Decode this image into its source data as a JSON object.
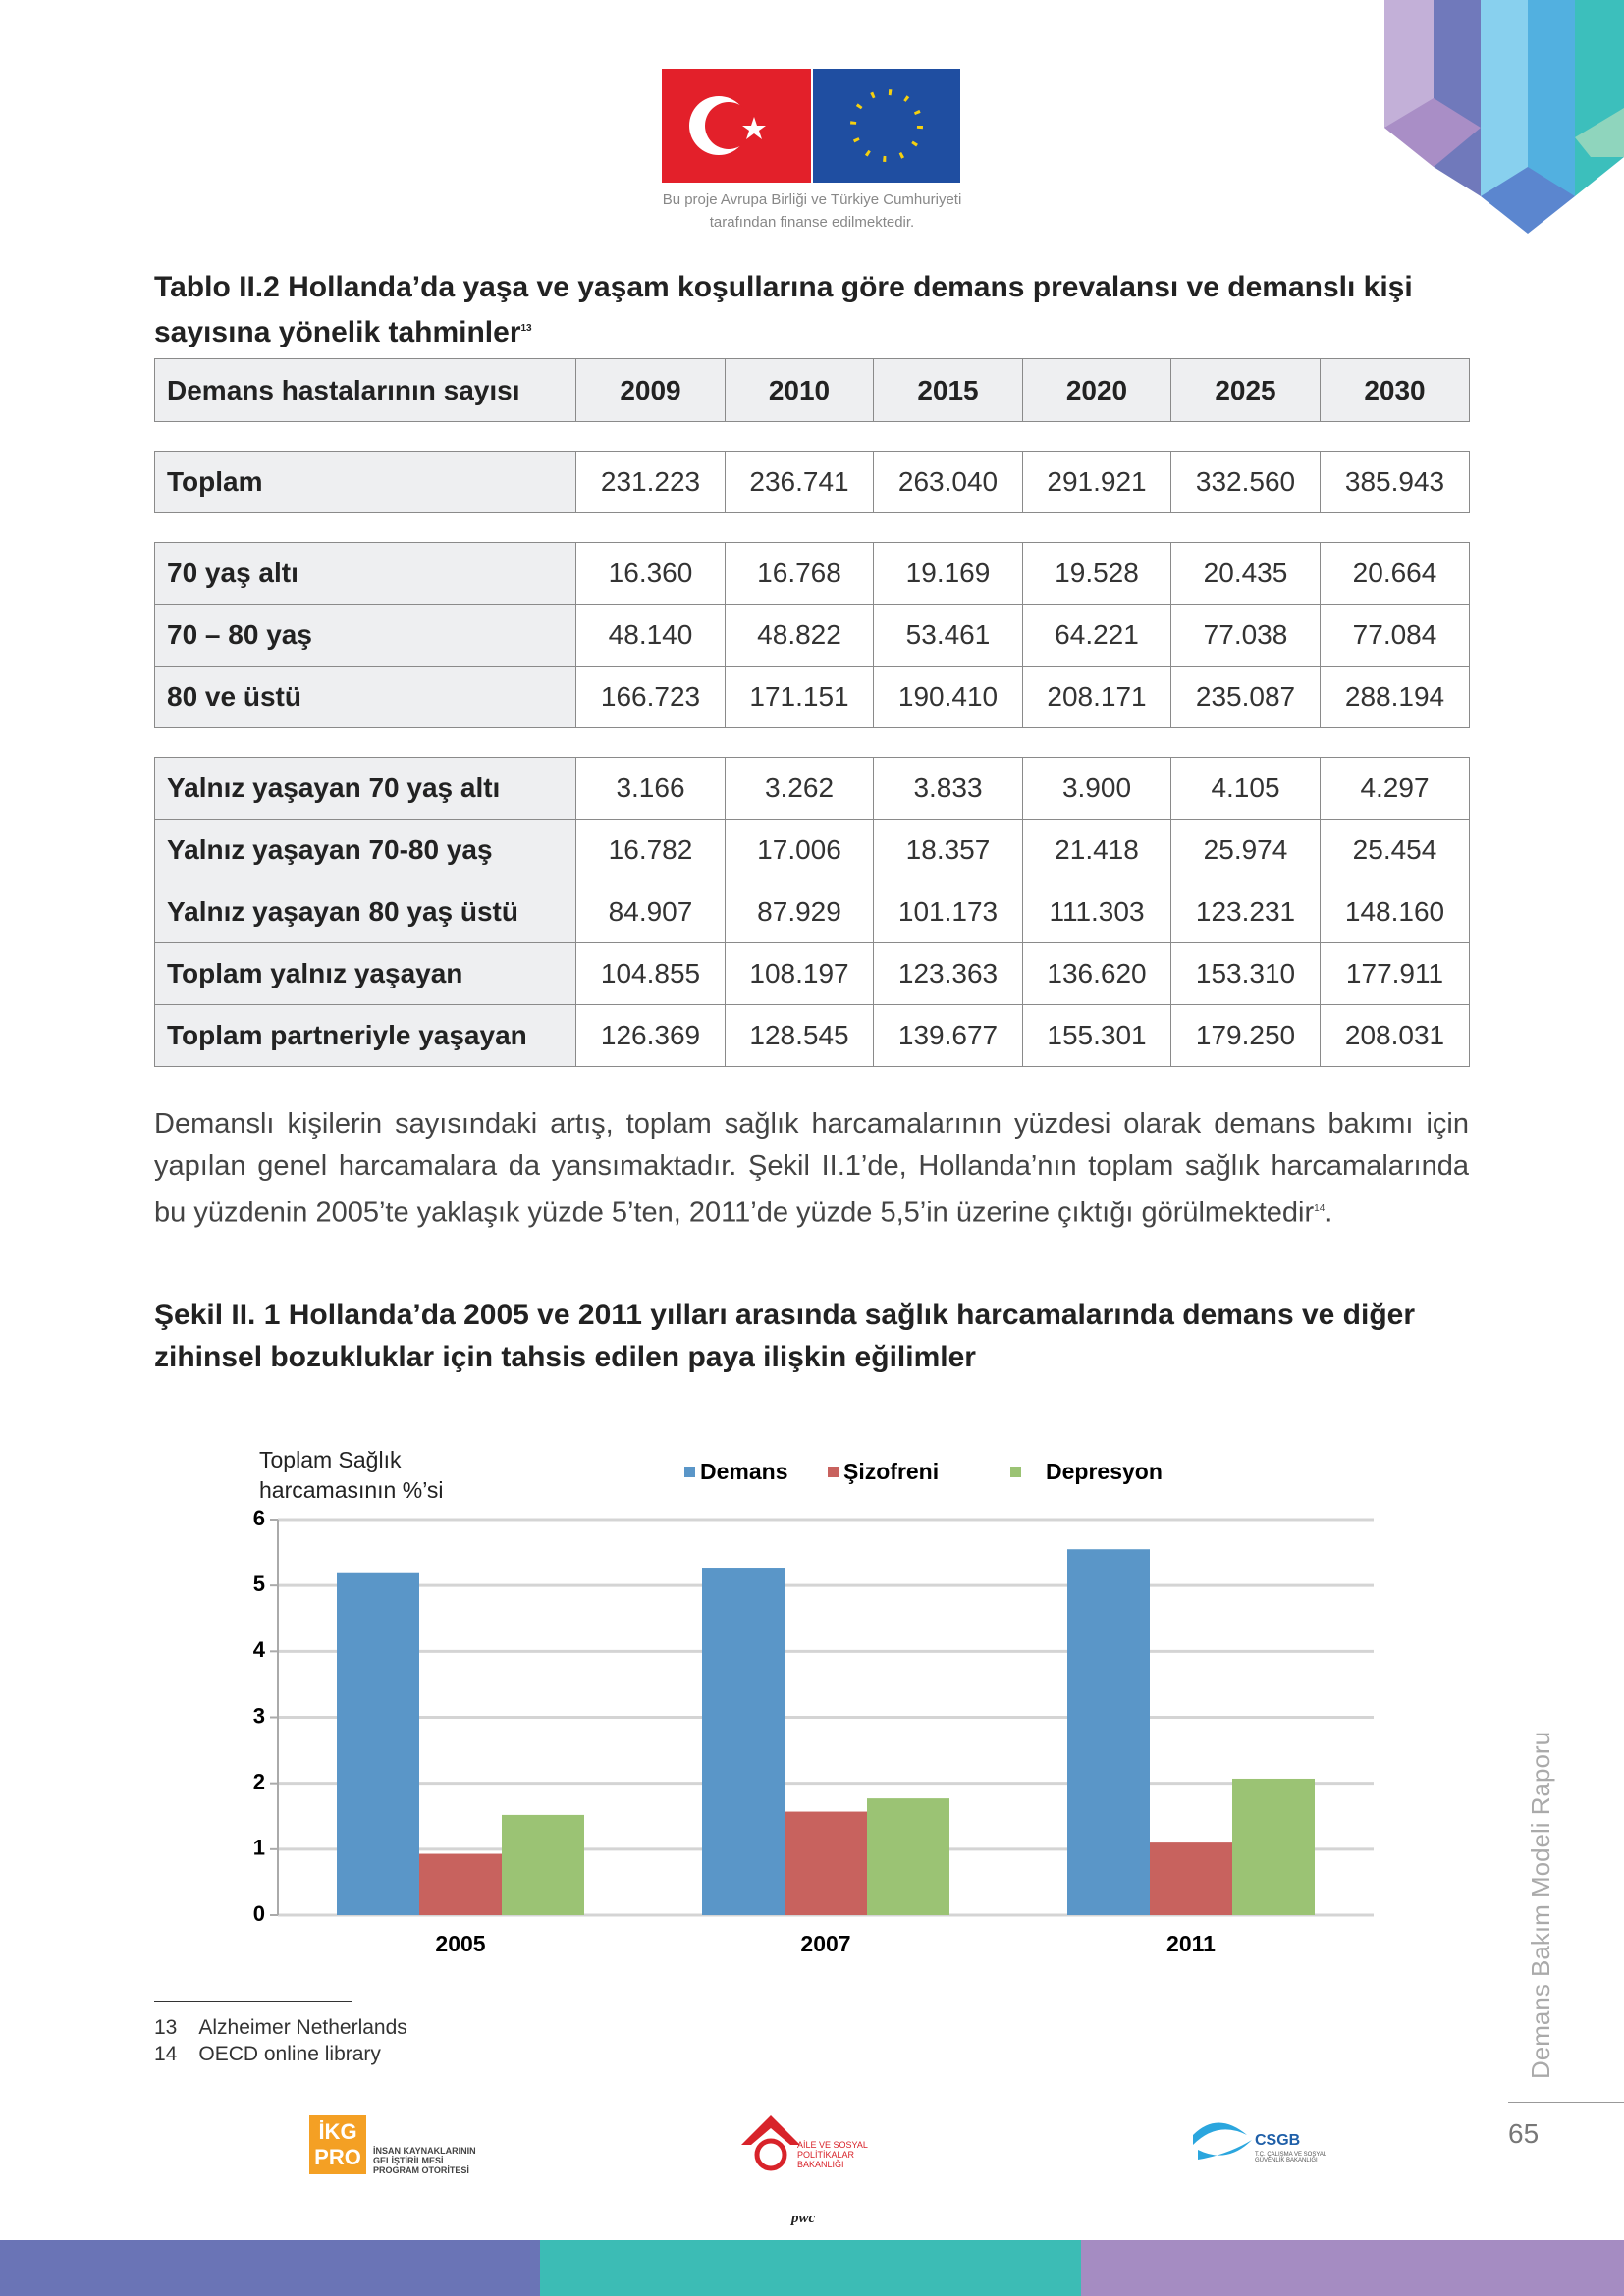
{
  "header": {
    "caption_line1": "Bu proje Avrupa Birliği ve Türkiye Cumhuriyeti",
    "caption_line2": "tarafından finanse edilmektedir."
  },
  "table": {
    "title": "Tablo II.2 Hollanda’da yaşa ve yaşam koşullarına göre demans prevalansı ve demanslı kişi sayısına yönelik tahminler",
    "title_note": "13",
    "columns": [
      "Demans hastalarının sayısı",
      "2009",
      "2010",
      "2015",
      "2020",
      "2025",
      "2030"
    ],
    "groups": [
      [
        [
          "Toplam",
          "231.223",
          "236.741",
          "263.040",
          "291.921",
          "332.560",
          "385.943"
        ]
      ],
      [
        [
          "70 yaş altı",
          "16.360",
          "16.768",
          "19.169",
          "19.528",
          "20.435",
          "20.664"
        ],
        [
          "70 – 80 yaş",
          "48.140",
          "48.822",
          "53.461",
          "64.221",
          "77.038",
          "77.084"
        ],
        [
          "80 ve üstü",
          "166.723",
          "171.151",
          "190.410",
          "208.171",
          "235.087",
          "288.194"
        ]
      ],
      [
        [
          "Yalnız yaşayan 70 yaş altı",
          "3.166",
          "3.262",
          "3.833",
          "3.900",
          "4.105",
          "4.297"
        ],
        [
          "Yalnız yaşayan 70-80 yaş",
          "16.782",
          "17.006",
          "18.357",
          "21.418",
          "25.974",
          "25.454"
        ],
        [
          "Yalnız yaşayan 80 yaş üstü",
          "84.907",
          "87.929",
          "101.173",
          "111.303",
          "123.231",
          "148.160"
        ],
        [
          "Toplam yalnız yaşayan",
          "104.855",
          "108.197",
          "123.363",
          "136.620",
          "153.310",
          "177.911"
        ],
        [
          "Toplam partneriyle yaşayan",
          "126.369",
          "128.545",
          "139.677",
          "155.301",
          "179.250",
          "208.031"
        ]
      ]
    ]
  },
  "paragraph": {
    "text": "Demanslı kişilerin sayısındaki artış, toplam sağlık harcamalarının yüzdesi olarak demans bakımı için yapılan genel harcamalara da yansımaktadır. Şekil II.1’de, Hollanda’nın toplam sağlık harcamalarında bu yüzdenin 2005’te yaklaşık yüzde 5’ten, 2011’de yüzde 5,5’in üzerine çıktığı görülmektedir",
    "note": "14"
  },
  "chart_data": {
    "type": "bar",
    "title": "Şekil II. 1 Hollanda’da 2005 ve 2011 yılları arasında sağlık harcamalarında demans ve diğer zihinsel bozukluklar için tahsis edilen paya ilişkin eğilimler",
    "ylabel": "Toplam Sağlık harcamasının %’si",
    "categories": [
      "2005",
      "2007",
      "2011"
    ],
    "series": [
      {
        "name": "Demans",
        "color": "#5a96c8",
        "values": [
          5.2,
          5.27,
          5.55
        ]
      },
      {
        "name": "Şizofreni",
        "color": "#c8625e",
        "values": [
          0.93,
          1.57,
          1.1
        ]
      },
      {
        "name": "Depresyon",
        "color": "#9bc374",
        "values": [
          1.52,
          1.77,
          2.07
        ]
      }
    ],
    "ylim": [
      0,
      6
    ],
    "yticks": [
      0,
      1,
      2,
      3,
      4,
      5,
      6
    ],
    "grid": true,
    "legend": "top"
  },
  "footnotes": [
    {
      "number": "13",
      "text": "Alzheimer Netherlands"
    },
    {
      "number": "14",
      "text": "OECD online library"
    }
  ],
  "side_text": "Demans Bakım Modeli Raporu",
  "page_number": "65",
  "logos": {
    "ikg": "İKG PRO",
    "ikg_text": "İNSAN KAYNAKLARININ GELİŞTİRİLMESİ PROGRAM OTORİTESİ",
    "aile": "AİLE VE SOSYAL POLİTİKALAR BAKANLIĞI",
    "csgb": "CSGB",
    "csgb_text": "T.C. ÇALIŞMA VE SOSYAL GÜVENLİK BAKANLIĞI",
    "pwc": "pwc"
  }
}
